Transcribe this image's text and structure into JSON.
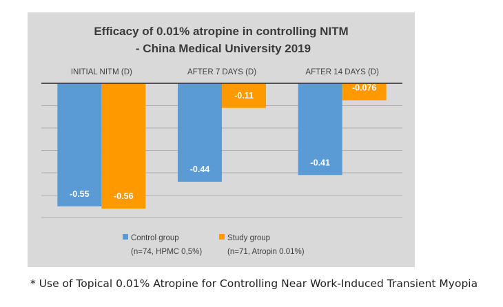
{
  "chart_data": {
    "type": "bar",
    "title": [
      "Efficacy of 0.01% atropine in controlling NITM",
      "-  China Medical University 2019"
    ],
    "categories": [
      "INITIAL NITM (D)",
      "AFTER 7 DAYS (D)",
      "AFTER 14 DAYS (D)"
    ],
    "series": [
      {
        "name": "Control group",
        "subtitle": "(n=74, HPMC 0,5%)",
        "color": "#5b9bd5",
        "values": [
          -0.55,
          -0.44,
          -0.41
        ],
        "labels": [
          "-0.55",
          "-0.44",
          "-0.41"
        ]
      },
      {
        "name": "Study group",
        "subtitle": "(n=71, Atropin 0.01%)",
        "color": "#ff9900",
        "values": [
          -0.56,
          -0.11,
          -0.076
        ],
        "labels": [
          "-0.56",
          "-0.11",
          "-0.076"
        ]
      }
    ],
    "ylim": [
      -0.6,
      0
    ],
    "grid": true,
    "axis_position": "top",
    "legend_position": "bottom"
  },
  "footnote": "* Use of Topical 0.01% Atropine for Controlling Near Work-Induced Transient Myopia"
}
